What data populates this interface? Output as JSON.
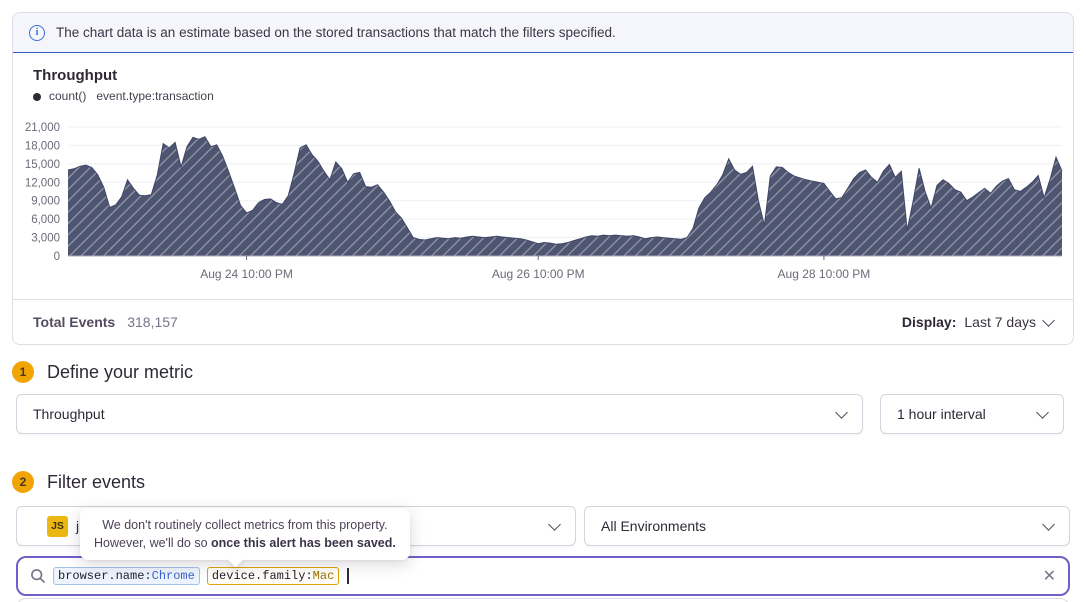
{
  "banner": {
    "text": "The chart data is an estimate based on the stored transactions that match the filters specified."
  },
  "chart_header": {
    "title": "Throughput",
    "legend_series": "count()",
    "legend_filter": "event.type:transaction"
  },
  "chart_data": {
    "type": "area",
    "title": "Throughput",
    "series_name": "count()",
    "series_filter": "event.type:transaction",
    "interval": "1 hour",
    "x_tick_labels": [
      "Aug 24 10:00 PM",
      "Aug 26 10:00 PM",
      "Aug 28 10:00 PM"
    ],
    "x_tick_hours": [
      30,
      79,
      127
    ],
    "y_ticks": [
      0,
      3000,
      6000,
      9000,
      12000,
      15000,
      18000,
      21000
    ],
    "ylim": [
      0,
      21000
    ],
    "grid": true,
    "legend_position": "top-left",
    "values": [
      14000,
      14200,
      14600,
      14800,
      14400,
      13200,
      11200,
      7900,
      8300,
      9600,
      12400,
      11000,
      9900,
      9800,
      10000,
      13200,
      18300,
      17600,
      18500,
      14500,
      17800,
      19300,
      19000,
      19400,
      17800,
      18100,
      16200,
      13700,
      11000,
      8200,
      7000,
      7400,
      8700,
      9200,
      9300,
      8700,
      8400,
      9800,
      13500,
      17600,
      18100,
      16500,
      15400,
      13800,
      12400,
      15300,
      14200,
      12000,
      13400,
      13600,
      11300,
      11200,
      11600,
      10400,
      9000,
      7200,
      6200,
      4600,
      3000,
      2700,
      2600,
      2800,
      3000,
      2900,
      2800,
      3000,
      2900,
      3100,
      3200,
      3100,
      3000,
      3100,
      3200,
      3100,
      3000,
      2900,
      2800,
      2600,
      2300,
      2000,
      2200,
      2100,
      1900,
      2000,
      2200,
      2500,
      2800,
      3100,
      3300,
      3200,
      3400,
      3300,
      3400,
      3300,
      3200,
      3300,
      3100,
      2800,
      3000,
      3100,
      3000,
      2900,
      2800,
      2700,
      3000,
      4500,
      7800,
      9500,
      10400,
      11600,
      13200,
      15800,
      14000,
      13300,
      13600,
      14600,
      9000,
      5000,
      13000,
      14500,
      14400,
      13600,
      13000,
      12700,
      12400,
      12200,
      12000,
      11800,
      10500,
      9300,
      9500,
      11000,
      12600,
      13600,
      14000,
      12800,
      12000,
      13800,
      14900,
      12800,
      13800,
      4200,
      9000,
      14300,
      10500,
      7800,
      11500,
      12400,
      11800,
      10800,
      10400,
      9000,
      9600,
      10300,
      11000,
      10200,
      11400,
      12200,
      12600,
      10800,
      10500,
      11200,
      12000,
      13100,
      9500,
      12500,
      16100,
      13800
    ]
  },
  "chart_footer": {
    "total_events_label": "Total Events",
    "total_events_value": "318,157",
    "display_label": "Display:",
    "display_value": "Last 7 days"
  },
  "sections": {
    "metric": {
      "number": "1",
      "title": "Define your metric",
      "metric_select_value": "Throughput",
      "interval_select_value": "1 hour interval"
    },
    "filter": {
      "number": "2",
      "title": "Filter events",
      "project_badge": "JS",
      "project_label_visible": "j",
      "environment_select_value": "All Environments"
    }
  },
  "tooltip": {
    "line1": "We don't routinely collect metrics from this property.",
    "line2_normal": "However, we'll do so ",
    "line2_bold": "once this alert has been saved."
  },
  "search": {
    "tokens": [
      {
        "key": "browser.name:",
        "value": "Chrome",
        "style": "blue"
      },
      {
        "key": "device.family:",
        "value": "Mac",
        "style": "amber"
      }
    ]
  },
  "colors": {
    "banner_bg": "#f4f6fb",
    "banner_border": "#2f5dbb",
    "info_blue": "#3a6fd8",
    "chart_fill": "#4e5571",
    "chart_hatch": "rgba(255,255,255,0.38)",
    "step_badge": "#f0a504",
    "js_badge": "#edb713",
    "search_focus_border": "#6e5fc9",
    "token_blue_border": "#a6c0ea",
    "token_blue_value": "#3c63cb",
    "token_amber_border": "#dca50a",
    "token_amber_value": "#9c6f02"
  }
}
